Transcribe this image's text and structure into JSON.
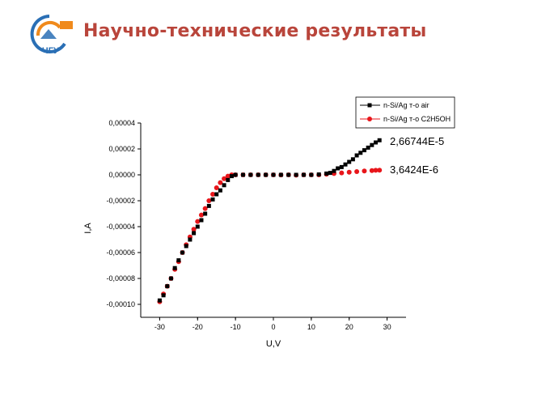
{
  "slide": {
    "title": "Научно-технические результаты",
    "logo_text": "ЧГУ"
  },
  "colors": {
    "title": "#b9453b",
    "series_air": "#000000",
    "series_ethanol": "#e8161b",
    "logo_blue": "#2a6fb5",
    "logo_orange": "#f08a1c"
  },
  "chart_data": {
    "type": "scatter",
    "xlabel": "U,V",
    "ylabel": "I,A",
    "xlim": [
      -35,
      35
    ],
    "ylim": [
      -0.00011,
      4e-05
    ],
    "x_ticks": [
      -30,
      -20,
      -10,
      0,
      10,
      20,
      30
    ],
    "x_tick_labels": [
      "-30",
      "-20",
      "-10",
      "0",
      "10",
      "20",
      "30"
    ],
    "y_ticks": [
      4e-05,
      2e-05,
      0.0,
      -2e-05,
      -4e-05,
      -6e-05,
      -8e-05,
      -0.0001
    ],
    "y_tick_labels": [
      "0,00004",
      "0,00002",
      "0,00000",
      "-0,00002",
      "-0,00004",
      "-0,00006",
      "-0,00008",
      "-0,00010"
    ],
    "legend_position": "top-right",
    "series": [
      {
        "name": "n-Si/Ag т-о air",
        "marker": "square",
        "color": "#000000",
        "end_label": "2,66744E-5",
        "x": [
          -30,
          -29,
          -28,
          -27,
          -26,
          -25,
          -24,
          -23,
          -22,
          -21,
          -20,
          -19,
          -18,
          -17,
          -16,
          -15,
          -14,
          -13,
          -12,
          -11,
          -10,
          -8,
          -6,
          -4,
          -2,
          0,
          2,
          4,
          6,
          8,
          10,
          12,
          14,
          15,
          16,
          17,
          18,
          19,
          20,
          21,
          22,
          23,
          24,
          25,
          26,
          27,
          28
        ],
        "y": [
          -9.7e-05,
          -9.3e-05,
          -8.6e-05,
          -8e-05,
          -7.2e-05,
          -6.6e-05,
          -6e-05,
          -5.5e-05,
          -5e-05,
          -4.5e-05,
          -4e-05,
          -3.5e-05,
          -3e-05,
          -2.4e-05,
          -1.9e-05,
          -1.5e-05,
          -1.2e-05,
          -8e-06,
          -4e-06,
          -1e-06,
          0.0,
          0.0,
          0.0,
          0.0,
          0.0,
          0.0,
          0.0,
          0.0,
          0.0,
          0.0,
          0.0,
          3e-07,
          1e-06,
          1.5e-06,
          3e-06,
          5e-06,
          6e-06,
          8e-06,
          1e-05,
          1.2e-05,
          1.5e-05,
          1.7e-05,
          1.9e-05,
          2.1e-05,
          2.3e-05,
          2.5e-05,
          2.67e-05
        ]
      },
      {
        "name": "n-Si/Ag т-о C2H5OH",
        "marker": "circle",
        "color": "#e8161b",
        "end_label": "3,6424E-6",
        "x": [
          -30,
          -29,
          -28,
          -27,
          -26,
          -25,
          -24,
          -23,
          -22,
          -21,
          -20,
          -19,
          -18,
          -17,
          -16,
          -15,
          -14,
          -13,
          -12,
          -11,
          -10,
          -8,
          -6,
          -4,
          -2,
          0,
          2,
          4,
          6,
          8,
          10,
          12,
          14,
          16,
          18,
          20,
          22,
          24,
          26,
          27,
          28
        ],
        "y": [
          -9.8e-05,
          -9.2e-05,
          -8.6e-05,
          -8e-05,
          -7.3e-05,
          -6.7e-05,
          -6e-05,
          -5.4e-05,
          -4.8e-05,
          -4.2e-05,
          -3.6e-05,
          -3.1e-05,
          -2.6e-05,
          -2e-05,
          -1.5e-05,
          -1e-05,
          -6e-06,
          -3e-06,
          -1e-06,
          0.0,
          0.0,
          0.0,
          0.0,
          0.0,
          0.0,
          0.0,
          -1e-07,
          0.0,
          -2e-07,
          0.0,
          0.0,
          0.0,
          5e-07,
          1e-06,
          1.5e-06,
          2e-06,
          2.5e-06,
          3e-06,
          3.3e-06,
          3.5e-06,
          3.6e-06
        ]
      }
    ]
  }
}
